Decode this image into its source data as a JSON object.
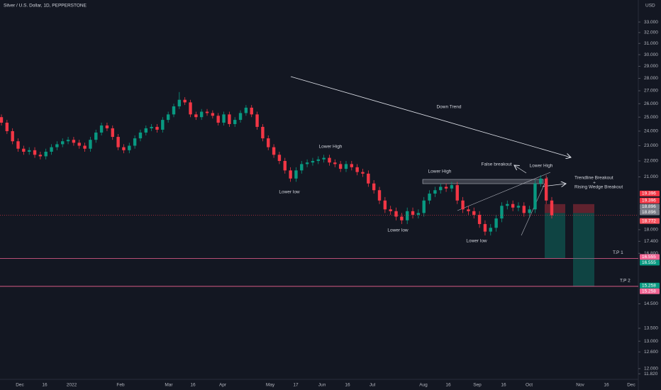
{
  "chart_data": {
    "type": "candlestick",
    "title": "Silver / U.S. Dollar, 1D, PEPPERSTONE",
    "currency": "USD",
    "log_scale": true,
    "up_color": "#089981",
    "down_color": "#f23645",
    "ylim": [
      11.63,
      35.19
    ],
    "yticks": [
      {
        "value": 33,
        "label": "33.000"
      },
      {
        "value": 32,
        "label": "32.000"
      },
      {
        "value": 31,
        "label": "31.000"
      },
      {
        "value": 30,
        "label": "30.000"
      },
      {
        "value": 29,
        "label": "29.000"
      },
      {
        "value": 28,
        "label": "28.000"
      },
      {
        "value": 27,
        "label": "27.000"
      },
      {
        "value": 26,
        "label": "26.000"
      },
      {
        "value": 25,
        "label": "25.000"
      },
      {
        "value": 24,
        "label": "24.000"
      },
      {
        "value": 23,
        "label": "23.000"
      },
      {
        "value": 22,
        "label": "22.000"
      },
      {
        "value": 21,
        "label": "21.000"
      },
      {
        "value": 18,
        "label": "18.000"
      },
      {
        "value": 17.4,
        "label": "17.400"
      },
      {
        "value": 16.8,
        "label": "16.800"
      },
      {
        "value": 14.5,
        "label": "14.500"
      },
      {
        "value": 13.5,
        "label": "13.500"
      },
      {
        "value": 13,
        "label": "13.000"
      },
      {
        "value": 12.6,
        "label": "12.600"
      },
      {
        "value": 12,
        "label": "12.000"
      },
      {
        "value": 11.82,
        "label": "11.820"
      }
    ],
    "x_labels": [
      "Dec",
      "16",
      "2022",
      "Feb",
      "Mar",
      "16",
      "Apr",
      "May",
      "17",
      "Jun",
      "16",
      "Jul",
      "Aug",
      "16",
      "Sep",
      "16",
      "Oct",
      "Nov",
      "16",
      "Dec"
    ],
    "candles": [
      [
        25.0,
        25.2,
        24.4,
        24.6
      ],
      [
        24.6,
        24.8,
        23.8,
        24.0
      ],
      [
        24.0,
        24.2,
        23.1,
        23.3
      ],
      [
        23.3,
        23.5,
        22.6,
        22.8
      ],
      [
        22.8,
        23.0,
        22.4,
        22.6
      ],
      [
        22.6,
        22.9,
        22.4,
        22.7
      ],
      [
        22.7,
        22.9,
        22.2,
        22.4
      ],
      [
        22.4,
        22.6,
        22.1,
        22.3
      ],
      [
        22.3,
        22.8,
        22.1,
        22.6
      ],
      [
        22.6,
        23.1,
        22.4,
        22.9
      ],
      [
        22.9,
        23.3,
        22.7,
        23.1
      ],
      [
        23.1,
        23.5,
        22.9,
        23.3
      ],
      [
        23.3,
        23.6,
        23.1,
        23.4
      ],
      [
        23.4,
        23.6,
        23.0,
        23.2
      ],
      [
        23.2,
        23.4,
        22.8,
        23.0
      ],
      [
        23.0,
        23.2,
        22.6,
        22.8
      ],
      [
        22.8,
        23.6,
        22.6,
        23.4
      ],
      [
        23.4,
        24.1,
        23.2,
        23.9
      ],
      [
        23.9,
        24.6,
        23.7,
        24.4
      ],
      [
        24.4,
        24.6,
        24.0,
        24.2
      ],
      [
        24.2,
        24.4,
        23.4,
        23.6
      ],
      [
        23.6,
        23.8,
        22.7,
        22.9
      ],
      [
        22.9,
        23.1,
        22.5,
        22.7
      ],
      [
        22.7,
        23.2,
        22.5,
        23.0
      ],
      [
        23.0,
        23.7,
        22.8,
        23.5
      ],
      [
        23.5,
        24.1,
        23.3,
        23.9
      ],
      [
        23.9,
        24.4,
        23.7,
        24.2
      ],
      [
        24.2,
        24.5,
        24.0,
        24.3
      ],
      [
        24.3,
        24.5,
        23.9,
        24.1
      ],
      [
        24.1,
        25.0,
        23.9,
        24.8
      ],
      [
        24.8,
        25.4,
        24.6,
        25.2
      ],
      [
        25.2,
        26.0,
        25.0,
        25.8
      ],
      [
        25.8,
        26.9,
        25.6,
        26.3
      ],
      [
        26.3,
        26.5,
        25.9,
        26.1
      ],
      [
        26.1,
        26.3,
        25.0,
        25.2
      ],
      [
        25.2,
        25.4,
        24.8,
        25.0
      ],
      [
        25.0,
        25.6,
        24.8,
        25.4
      ],
      [
        25.4,
        25.6,
        25.1,
        25.3
      ],
      [
        25.3,
        25.5,
        24.9,
        25.1
      ],
      [
        25.1,
        25.3,
        24.4,
        24.6
      ],
      [
        24.6,
        25.4,
        24.4,
        25.2
      ],
      [
        25.2,
        25.4,
        24.3,
        24.5
      ],
      [
        24.5,
        25.0,
        24.3,
        24.8
      ],
      [
        24.8,
        25.5,
        24.6,
        25.3
      ],
      [
        25.3,
        25.9,
        25.1,
        25.7
      ],
      [
        25.7,
        25.9,
        25.0,
        25.2
      ],
      [
        25.2,
        25.4,
        24.1,
        24.3
      ],
      [
        24.3,
        24.5,
        23.3,
        23.5
      ],
      [
        23.5,
        23.7,
        22.7,
        22.9
      ],
      [
        22.9,
        23.1,
        22.2,
        22.4
      ],
      [
        22.4,
        22.6,
        21.8,
        22.0
      ],
      [
        22.0,
        22.2,
        21.2,
        21.4
      ],
      [
        21.4,
        21.6,
        20.7,
        20.9
      ],
      [
        20.9,
        21.6,
        20.7,
        21.4
      ],
      [
        21.4,
        22.0,
        21.2,
        21.8
      ],
      [
        21.8,
        22.1,
        21.6,
        21.9
      ],
      [
        21.9,
        22.2,
        21.7,
        22.0
      ],
      [
        22.0,
        22.3,
        21.8,
        22.1
      ],
      [
        22.1,
        22.4,
        21.9,
        22.2
      ],
      [
        22.2,
        22.4,
        21.7,
        21.9
      ],
      [
        21.9,
        22.1,
        21.6,
        21.8
      ],
      [
        21.8,
        22.0,
        21.3,
        21.5
      ],
      [
        21.5,
        22.0,
        21.3,
        21.8
      ],
      [
        21.8,
        22.0,
        21.4,
        21.6
      ],
      [
        21.6,
        21.8,
        21.1,
        21.3
      ],
      [
        21.3,
        21.5,
        21.0,
        21.2
      ],
      [
        21.2,
        21.4,
        20.4,
        20.6
      ],
      [
        20.6,
        20.8,
        20.0,
        20.2
      ],
      [
        20.2,
        20.4,
        19.4,
        19.6
      ],
      [
        19.6,
        19.8,
        18.9,
        19.1
      ],
      [
        19.1,
        19.3,
        18.8,
        19.0
      ],
      [
        19.0,
        19.2,
        18.5,
        18.7
      ],
      [
        18.7,
        18.9,
        18.3,
        18.5
      ],
      [
        18.5,
        19.2,
        18.3,
        19.0
      ],
      [
        19.0,
        19.2,
        18.6,
        18.8
      ],
      [
        18.8,
        19.1,
        18.6,
        18.9
      ],
      [
        18.9,
        19.8,
        18.7,
        19.6
      ],
      [
        19.6,
        20.2,
        19.4,
        20.0
      ],
      [
        20.0,
        20.4,
        19.8,
        20.2
      ],
      [
        20.2,
        20.6,
        20.0,
        20.4
      ],
      [
        20.4,
        20.6,
        20.1,
        20.3
      ],
      [
        20.3,
        20.7,
        20.1,
        20.5
      ],
      [
        20.5,
        20.7,
        19.4,
        19.6
      ],
      [
        19.6,
        19.8,
        18.9,
        19.1
      ],
      [
        19.1,
        19.3,
        18.8,
        19.0
      ],
      [
        19.0,
        19.2,
        18.6,
        18.8
      ],
      [
        18.8,
        19.0,
        18.1,
        18.3
      ],
      [
        18.3,
        18.5,
        17.7,
        17.9
      ],
      [
        17.9,
        18.3,
        17.7,
        18.1
      ],
      [
        18.1,
        18.8,
        17.9,
        18.6
      ],
      [
        18.6,
        19.5,
        18.4,
        19.3
      ],
      [
        19.3,
        19.6,
        19.1,
        19.4
      ],
      [
        19.4,
        19.6,
        19.0,
        19.2
      ],
      [
        19.2,
        19.5,
        19.0,
        19.3
      ],
      [
        19.3,
        19.5,
        18.7,
        18.9
      ],
      [
        18.9,
        19.3,
        18.7,
        19.1
      ],
      [
        19.1,
        20.8,
        18.9,
        20.6
      ],
      [
        20.6,
        21.1,
        20.4,
        20.9
      ],
      [
        20.9,
        21.1,
        19.4,
        19.6
      ],
      [
        19.6,
        19.8,
        18.6,
        18.772
      ]
    ],
    "annotations": [
      "Down Trend",
      "Lower High",
      "Lower low",
      "Lower High",
      "Lower low",
      "Lower low",
      "False breakout",
      "Lower High",
      "Trendline Breakout",
      "+",
      "Rising Wedge Breakout"
    ],
    "positions": [
      {
        "entry": 18.896,
        "stop": 19.396,
        "target": 16.555,
        "label": "T.P 1"
      },
      {
        "entry": 18.896,
        "stop": 19.396,
        "target": 15.258,
        "label": "T.P 2"
      }
    ]
  }
}
